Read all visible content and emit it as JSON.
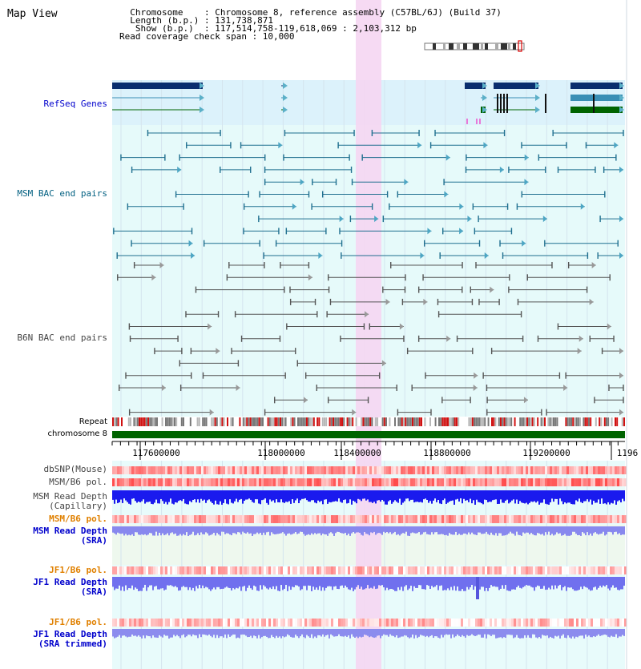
{
  "header": {
    "title": "Map View",
    "info_lines": [
      "  Chromosome    : Chromosome 8, reference assembly (C57BL/6J) (Build 37)",
      "  Length (b.p.) : 131,738,871",
      "   Show (b.p.)  : 117,514,758-119,618,069 : 2,103,312 bp",
      "Read coverage check span : 10,000"
    ]
  },
  "tracks": {
    "refseq": "RefSeq Genes",
    "msm_bac": "MSM BAC end pairs",
    "b6n_bac": "B6N BAC end pairs",
    "repeat": "Repeat",
    "chromosome": "chromosome 8",
    "dbsnp": "dbSNP(Mouse)",
    "msm_b6_pol": "MSM/B6 pol.",
    "msm_depth_cap": "MSM Read Depth\n(Capillary)",
    "msm_b6_pol2": "MSM/B6 pol.",
    "msm_depth_sra": "MSM Read Depth\n(SRA)",
    "jf1_b6_pol": "JF1/B6 pol.",
    "jf1_depth_sra": "JF1 Read Depth\n(SRA)",
    "jf1_b6_pol2": "JF1/B6 pol.",
    "jf1_depth_trim": "JF1 Read Depth\n(SRA trimmed)"
  },
  "axis": {
    "ticks": [
      "117600000",
      "118000000",
      "118400000",
      "118800000",
      "119200000",
      "1196"
    ]
  },
  "colors": {
    "label_blue": "#0000cc",
    "label_teal": "#005f80",
    "label_gray": "#444444",
    "label_orange": "#e08000",
    "highlight": "#f5d6f2",
    "refseq_bg": "#dcf2fb",
    "bac_bg": "#e6fafa",
    "chrom_green": "#006400"
  }
}
